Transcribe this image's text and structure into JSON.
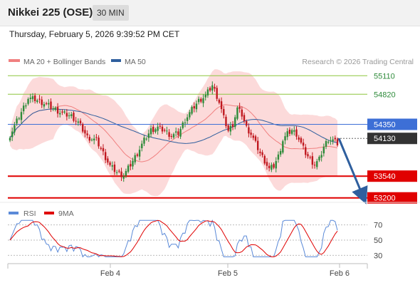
{
  "header": {
    "instrument": "Nikkei 225 (OSE)",
    "timeframe": "30 MIN"
  },
  "timestamp": "Thursday, February 5, 2026 9:39:52 PM CET",
  "copyright": "Research © 2026 Trading Central",
  "colors": {
    "resistance": "#8dc63f",
    "support": "#e00000",
    "pivot": "#3d6fd6",
    "current": "#333333",
    "bull": "#2e8b3a",
    "bear": "#c0181f",
    "ma20": "#f08080",
    "bands": "#fbd3d3",
    "ma50": "#2f5f9e",
    "rsi": "#5b8ad8",
    "rsi_ma": "#e00000",
    "arrow": "#2f5f9e"
  },
  "chart_data": [
    {
      "type": "candlestick",
      "legend": [
        {
          "label": "MA 20 + Bollinger Bands",
          "color": "#f08080"
        },
        {
          "label": "MA 50",
          "color": "#2f5f9e"
        }
      ],
      "ylim": [
        53130,
        55180
      ],
      "x_ticks": [
        "Feb 4",
        "Feb 5",
        "Feb 6"
      ],
      "levels": [
        {
          "value": 55110,
          "label": "55110",
          "kind": "resistance"
        },
        {
          "value": 54820,
          "label": "54820",
          "kind": "resistance"
        },
        {
          "value": 54350,
          "label": "54350",
          "kind": "pivot"
        },
        {
          "value": 54130,
          "label": "54130",
          "kind": "current"
        },
        {
          "value": 53540,
          "label": "53540",
          "kind": "support"
        },
        {
          "value": 53200,
          "label": "53200",
          "kind": "support"
        }
      ],
      "forecast": {
        "from": 54130,
        "to": 53200
      }
    },
    {
      "type": "line",
      "legend": [
        {
          "label": "RSI",
          "color": "#5b8ad8"
        },
        {
          "label": "9MA",
          "color": "#e00000"
        }
      ],
      "ylim": [
        20,
        80
      ],
      "y_ticks": [
        {
          "value": 70,
          "label": "70"
        },
        {
          "value": 50,
          "label": "50"
        },
        {
          "value": 30,
          "label": "30"
        }
      ]
    }
  ]
}
